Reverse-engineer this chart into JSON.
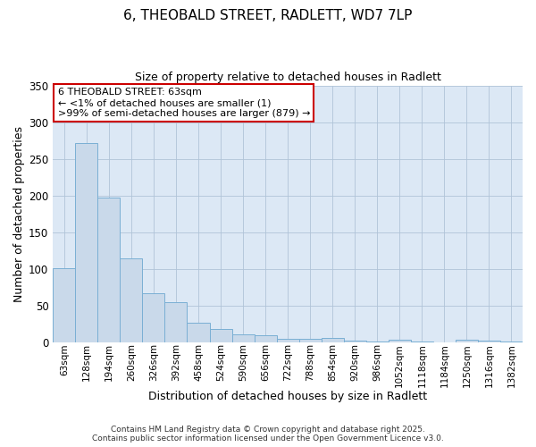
{
  "title": "6, THEOBALD STREET, RADLETT, WD7 7LP",
  "subtitle": "Size of property relative to detached houses in Radlett",
  "xlabel": "Distribution of detached houses by size in Radlett",
  "ylabel": "Number of detached properties",
  "bar_color": "#c9d9ea",
  "bar_edge_color": "#7aafd4",
  "figure_bg_color": "#ffffff",
  "plot_bg_color": "#dce8f5",
  "categories": [
    "63sqm",
    "128sqm",
    "194sqm",
    "260sqm",
    "326sqm",
    "392sqm",
    "458sqm",
    "524sqm",
    "590sqm",
    "656sqm",
    "722sqm",
    "788sqm",
    "854sqm",
    "920sqm",
    "986sqm",
    "1052sqm",
    "1118sqm",
    "1184sqm",
    "1250sqm",
    "1316sqm",
    "1382sqm"
  ],
  "values": [
    101,
    271,
    197,
    114,
    67,
    54,
    27,
    18,
    10,
    9,
    4,
    5,
    6,
    2,
    1,
    3,
    1,
    0,
    3,
    2,
    1
  ],
  "ylim": [
    0,
    350
  ],
  "yticks": [
    0,
    50,
    100,
    150,
    200,
    250,
    300,
    350
  ],
  "annotation_text": "6 THEOBALD STREET: 63sqm\n← <1% of detached houses are smaller (1)\n>99% of semi-detached houses are larger (879) →",
  "annotation_box_color": "#ffffff",
  "annotation_border_color": "#cc0000",
  "footer_text": "Contains HM Land Registry data © Crown copyright and database right 2025.\nContains public sector information licensed under the Open Government Licence v3.0.",
  "grid_color": "#b0c4d8"
}
